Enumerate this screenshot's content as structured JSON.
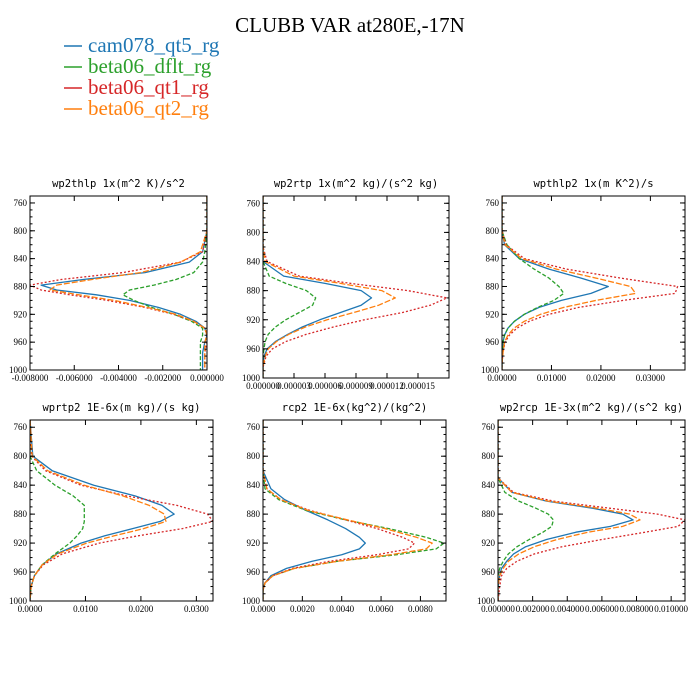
{
  "figure": {
    "title": "CLUBB VAR at280E,-17N"
  },
  "legend": [
    {
      "name": "cam078_qt5_rg",
      "color": "#1f77b4"
    },
    {
      "name": "beta06_dflt_rg",
      "color": "#2ca02c"
    },
    {
      "name": "beta06_qt1_rg",
      "color": "#d62728"
    },
    {
      "name": "beta06_qt2_rg",
      "color": "#ff7f0e"
    }
  ],
  "chart_data": [
    {
      "type": "line",
      "title": "wp2thlp  1x(m^2 K)/s^2",
      "ylim": [
        1000,
        750
      ],
      "yticks": [
        760,
        800,
        840,
        880,
        920,
        960,
        1000
      ],
      "xlim": [
        -0.008,
        0.0
      ],
      "xticks": [
        -0.008,
        -0.006,
        -0.004,
        -0.002,
        0.0
      ],
      "xticklabels": [
        "-0.008000",
        "-0.006000",
        "-0.004000",
        "-0.002000",
        "0.000000"
      ],
      "y": [
        750,
        800,
        830,
        845,
        860,
        870,
        878,
        885,
        892,
        900,
        910,
        920,
        930,
        940,
        950,
        960,
        975,
        990,
        1000
      ],
      "series": [
        {
          "name": "cam078_qt5_rg",
          "values": [
            0.0,
            0.0,
            -0.0002,
            -0.0008,
            -0.0028,
            -0.0056,
            -0.0075,
            -0.0068,
            -0.005,
            -0.0035,
            -0.0022,
            -0.0012,
            -0.0005,
            -0.0001,
            0.0,
            -0.0001,
            -0.0002,
            -0.0002,
            -0.0002
          ]
        },
        {
          "name": "beta06_dflt_rg",
          "values": [
            0.0,
            0.0,
            -0.0001,
            -0.0002,
            -0.0006,
            -0.0014,
            -0.0024,
            -0.0035,
            -0.0038,
            -0.0033,
            -0.0025,
            -0.0015,
            -0.0007,
            -0.0002,
            -0.0002,
            -0.0003,
            -0.0003,
            -0.0003,
            -0.0003
          ]
        },
        {
          "name": "beta06_qt1_rg",
          "values": [
            0.0,
            0.0,
            -0.0002,
            -0.0012,
            -0.0038,
            -0.0066,
            -0.008,
            -0.0075,
            -0.0062,
            -0.0045,
            -0.0028,
            -0.0015,
            -0.0006,
            -0.0001,
            0.0,
            0.0,
            -0.0001,
            -0.0001,
            -0.0001
          ]
        },
        {
          "name": "beta06_qt2_rg",
          "values": [
            0.0,
            0.0,
            -0.0003,
            -0.0012,
            -0.003,
            -0.0052,
            -0.0068,
            -0.0071,
            -0.0058,
            -0.0042,
            -0.0027,
            -0.0014,
            -0.0006,
            -0.0001,
            0.0,
            -0.0001,
            -0.0001,
            -0.0001,
            -0.0001
          ]
        }
      ]
    },
    {
      "type": "line",
      "title": "wp2rtp  1x(m^2 kg)/(s^2 kg)",
      "ylim": [
        1000,
        750
      ],
      "yticks": [
        760,
        800,
        840,
        880,
        920,
        960,
        1000
      ],
      "xlim": [
        0.0,
        1.8e-05
      ],
      "xticks": [
        0.0,
        3e-06,
        6e-06,
        9e-06,
        1.2e-05,
        1.5e-05
      ],
      "xticklabels": [
        "0.000000",
        "0.000003",
        "0.000006",
        "0.000009",
        "0.000012",
        "0.000015"
      ],
      "y": [
        750,
        800,
        820,
        840,
        860,
        870,
        880,
        890,
        900,
        910,
        920,
        930,
        940,
        950,
        960,
        970,
        985,
        1000
      ],
      "series": [
        {
          "name": "cam078_qt5_rg",
          "values": [
            0.0,
            0.0,
            0.0,
            0.0,
            2e-06,
            6e-06,
            9.5e-06,
            1.05e-05,
            9.5e-06,
            7.5e-06,
            5.5e-06,
            3.8e-06,
            2.4e-06,
            1.2e-06,
            4e-07,
            1e-07,
            0.0,
            0.0
          ]
        },
        {
          "name": "beta06_dflt_rg",
          "values": [
            0.0,
            0.0,
            0.0,
            0.0,
            6e-07,
            2.2e-06,
            4.2e-06,
            5.1e-06,
            4.8e-06,
            3.5e-06,
            2.2e-06,
            1.2e-06,
            5e-07,
            2e-07,
            1e-07,
            0.0,
            0.0,
            0.0
          ]
        },
        {
          "name": "beta06_qt1_rg",
          "values": [
            0.0,
            0.0,
            0.0,
            4e-07,
            3.5e-06,
            8.5e-06,
            1.4e-05,
            1.78e-05,
            1.62e-05,
            1.35e-05,
            9.8e-06,
            6.8e-06,
            4.2e-06,
            2.2e-06,
            9e-07,
            3e-07,
            0.0,
            0.0
          ]
        },
        {
          "name": "beta06_qt2_rg",
          "values": [
            0.0,
            0.0,
            0.0,
            2e-07,
            3e-06,
            7.5e-06,
            1.15e-05,
            1.28e-05,
            1.12e-05,
            8.8e-06,
            6.2e-06,
            4.1e-06,
            2.5e-06,
            1.3e-06,
            5e-07,
            2e-07,
            0.0,
            0.0
          ]
        }
      ]
    },
    {
      "type": "line",
      "title": "wpthlp2  1x(m K^2)/s",
      "ylim": [
        1000,
        750
      ],
      "yticks": [
        760,
        800,
        840,
        880,
        920,
        960,
        1000
      ],
      "xlim": [
        0.0,
        0.037
      ],
      "xticks": [
        0.0,
        0.01,
        0.02,
        0.03
      ],
      "xticklabels": [
        "0.00000",
        "0.01000",
        "0.02000",
        "0.03000"
      ],
      "y": [
        750,
        800,
        820,
        840,
        855,
        868,
        880,
        890,
        900,
        910,
        920,
        930,
        940,
        950,
        960,
        975,
        990,
        1000
      ],
      "series": [
        {
          "name": "cam078_qt5_rg",
          "values": [
            0.0,
            0.0,
            0.0005,
            0.0035,
            0.0095,
            0.016,
            0.0215,
            0.018,
            0.012,
            0.0075,
            0.0045,
            0.0025,
            0.0012,
            0.0005,
            0.0002,
            0.0001,
            0.0,
            0.0
          ]
        },
        {
          "name": "beta06_dflt_rg",
          "values": [
            0.0,
            0.0,
            0.001,
            0.0035,
            0.0065,
            0.0095,
            0.0115,
            0.0125,
            0.0105,
            0.0072,
            0.0045,
            0.0025,
            0.0012,
            0.0005,
            0.0002,
            0.0001,
            0.0,
            0.0
          ]
        },
        {
          "name": "beta06_qt1_rg",
          "values": [
            0.0,
            0.0,
            0.0008,
            0.0045,
            0.013,
            0.024,
            0.0355,
            0.035,
            0.0245,
            0.0155,
            0.0095,
            0.0055,
            0.003,
            0.0015,
            0.0006,
            0.0002,
            0.0,
            0.0
          ]
        },
        {
          "name": "beta06_qt2_rg",
          "values": [
            0.0,
            0.0,
            0.0006,
            0.004,
            0.011,
            0.019,
            0.026,
            0.027,
            0.019,
            0.0125,
            0.0078,
            0.0045,
            0.0024,
            0.0012,
            0.0005,
            0.0002,
            0.0,
            0.0
          ]
        }
      ]
    },
    {
      "type": "line",
      "title": "wprtp2  1E-6x(m kg)/(s kg)",
      "ylim": [
        1000,
        750
      ],
      "yticks": [
        760,
        800,
        840,
        880,
        920,
        960,
        1000
      ],
      "xlim": [
        0.0,
        0.033
      ],
      "xticks": [
        0.0,
        0.01,
        0.02,
        0.03
      ],
      "xticklabels": [
        "0.0000",
        "0.0100",
        "0.0200",
        "0.0300"
      ],
      "y": [
        750,
        800,
        820,
        840,
        855,
        868,
        880,
        890,
        900,
        910,
        920,
        935,
        950,
        965,
        980,
        1000
      ],
      "series": [
        {
          "name": "cam078_qt5_rg",
          "values": [
            0.0,
            0.0005,
            0.004,
            0.0115,
            0.019,
            0.0238,
            0.026,
            0.0235,
            0.0185,
            0.0135,
            0.0092,
            0.0048,
            0.0022,
            0.0008,
            0.0002,
            0.0
          ]
        },
        {
          "name": "beta06_dflt_rg",
          "values": [
            0.0,
            0.0,
            0.0012,
            0.0045,
            0.0078,
            0.0098,
            0.0098,
            0.0098,
            0.0095,
            0.0085,
            0.0072,
            0.0045,
            0.0022,
            0.0008,
            0.0002,
            0.0
          ]
        },
        {
          "name": "beta06_qt1_rg",
          "values": [
            0.0,
            0.0003,
            0.0028,
            0.0092,
            0.0175,
            0.0265,
            0.032,
            0.033,
            0.0275,
            0.0195,
            0.0125,
            0.0058,
            0.0024,
            0.0008,
            0.0002,
            0.0
          ]
        },
        {
          "name": "beta06_qt2_rg",
          "values": [
            0.0,
            0.0004,
            0.0032,
            0.0098,
            0.0168,
            0.0215,
            0.0242,
            0.0245,
            0.0205,
            0.0152,
            0.0102,
            0.005,
            0.0022,
            0.0008,
            0.0002,
            0.0
          ]
        }
      ]
    },
    {
      "type": "line",
      "title": "rcp2  1E-6x(kg^2)/(kg^2)",
      "ylim": [
        1000,
        750
      ],
      "yticks": [
        760,
        800,
        840,
        880,
        920,
        960,
        1000
      ],
      "xlim": [
        0.0,
        0.0093
      ],
      "xticks": [
        0.0,
        0.002,
        0.004,
        0.006,
        0.008
      ],
      "xticklabels": [
        "0.0000",
        "0.0020",
        "0.0040",
        "0.0060",
        "0.0080"
      ],
      "y": [
        750,
        820,
        845,
        860,
        875,
        888,
        900,
        912,
        920,
        928,
        936,
        945,
        955,
        965,
        975,
        985,
        1000
      ],
      "series": [
        {
          "name": "cam078_qt5_rg",
          "values": [
            0.0,
            0.0,
            0.0004,
            0.0011,
            0.0022,
            0.0033,
            0.0042,
            0.0049,
            0.0052,
            0.0049,
            0.004,
            0.0025,
            0.0012,
            0.0004,
            0.0001,
            0.0,
            0.0
          ]
        },
        {
          "name": "beta06_dflt_rg",
          "values": [
            0.0,
            0.0,
            0.0001,
            0.0008,
            0.0022,
            0.0042,
            0.0064,
            0.0083,
            0.0092,
            0.0088,
            0.0068,
            0.0038,
            0.0016,
            0.0005,
            0.0001,
            0.0,
            0.0
          ]
        },
        {
          "name": "beta06_qt1_rg",
          "values": [
            0.0,
            0.0,
            0.0002,
            0.0009,
            0.0024,
            0.0042,
            0.0058,
            0.0071,
            0.0077,
            0.0074,
            0.0058,
            0.0034,
            0.0015,
            0.0005,
            0.0001,
            0.0,
            0.0
          ]
        },
        {
          "name": "beta06_qt2_rg",
          "values": [
            0.0,
            0.0,
            0.0002,
            0.0009,
            0.0023,
            0.0043,
            0.0062,
            0.0078,
            0.0086,
            0.0083,
            0.0065,
            0.0038,
            0.0016,
            0.0005,
            0.0001,
            0.0,
            0.0
          ]
        }
      ]
    },
    {
      "type": "line",
      "title": "wp2rcp  1E-3x(m^2 kg)/(s^2 kg)",
      "ylim": [
        1000,
        750
      ],
      "yticks": [
        760,
        800,
        840,
        880,
        920,
        960,
        1000
      ],
      "xlim": [
        0.0,
        0.0108
      ],
      "xticks": [
        0.0,
        0.002,
        0.004,
        0.006,
        0.008,
        0.01
      ],
      "xticklabels": [
        "0.000000",
        "0.002000",
        "0.004000",
        "0.006000",
        "0.008000",
        "0.010000"
      ],
      "y": [
        750,
        830,
        850,
        862,
        872,
        880,
        888,
        897,
        905,
        915,
        925,
        935,
        945,
        955,
        965,
        980,
        1000
      ],
      "series": [
        {
          "name": "cam078_qt5_rg",
          "values": [
            0.0,
            0.0,
            0.0008,
            0.0028,
            0.0055,
            0.0072,
            0.0078,
            0.0065,
            0.0045,
            0.0028,
            0.0016,
            0.0009,
            0.0005,
            0.0002,
            0.0001,
            0.0,
            0.0
          ]
        },
        {
          "name": "beta06_dflt_rg",
          "values": [
            0.0,
            0.0,
            0.0004,
            0.0012,
            0.0022,
            0.0029,
            0.0032,
            0.0031,
            0.0026,
            0.0018,
            0.0011,
            0.0006,
            0.0003,
            0.0001,
            0.0,
            0.0,
            0.0
          ]
        },
        {
          "name": "beta06_qt1_rg",
          "values": [
            0.0,
            0.0,
            0.0009,
            0.0032,
            0.0065,
            0.0092,
            0.0108,
            0.0104,
            0.0085,
            0.006,
            0.0037,
            0.0021,
            0.0011,
            0.0005,
            0.0002,
            0.0001,
            0.0
          ]
        },
        {
          "name": "beta06_qt2_rg",
          "values": [
            0.0,
            0.0,
            0.0008,
            0.0029,
            0.0058,
            0.0076,
            0.0082,
            0.0072,
            0.0052,
            0.0034,
            0.0021,
            0.0012,
            0.0006,
            0.0003,
            0.0001,
            0.0,
            0.0
          ]
        }
      ]
    }
  ]
}
